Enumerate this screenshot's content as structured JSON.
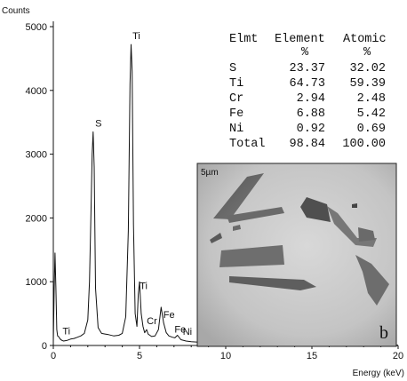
{
  "chart_data": {
    "type": "line",
    "ylabel": "Counts",
    "xlabel": "Energy (keV)",
    "xlim": [
      0,
      20
    ],
    "ylim": [
      0,
      5000
    ],
    "x_ticks": [
      "0",
      "5",
      "10",
      "15",
      "20"
    ],
    "y_ticks": [
      "0",
      "1000",
      "2000",
      "3000",
      "4000",
      "5000"
    ],
    "grid": false,
    "series": [
      {
        "x": [
          0.0,
          0.05,
          0.1,
          0.15,
          0.2,
          0.25,
          0.3,
          0.4,
          0.5,
          0.6,
          0.8,
          1.0,
          1.2,
          1.4,
          1.6,
          1.8,
          2.0,
          2.1,
          2.2,
          2.25,
          2.31,
          2.37,
          2.45,
          2.6,
          2.8,
          3.0,
          3.2,
          3.5,
          3.8,
          4.0,
          4.2,
          4.35,
          4.45,
          4.51,
          4.57,
          4.65,
          4.75,
          4.85,
          4.93,
          5.0,
          5.1,
          5.2,
          5.3,
          5.41,
          5.5,
          5.6,
          5.7,
          5.9,
          6.1,
          6.25,
          6.4,
          6.55,
          6.7,
          6.9,
          7.05,
          7.2,
          7.4,
          7.7,
          8.0,
          8.5,
          9.0,
          10.0,
          11.0,
          12.0,
          13.0,
          14.0,
          15.0,
          16.0,
          17.0,
          18.0,
          19.0,
          20.0
        ],
        "y": [
          50,
          900,
          1450,
          900,
          250,
          150,
          140,
          100,
          80,
          70,
          80,
          100,
          110,
          130,
          150,
          190,
          400,
          1000,
          2300,
          3000,
          3350,
          2800,
          900,
          280,
          190,
          180,
          170,
          150,
          160,
          190,
          450,
          1800,
          4100,
          4720,
          4300,
          1900,
          500,
          300,
          800,
          1000,
          500,
          300,
          200,
          250,
          180,
          160,
          140,
          150,
          250,
          600,
          350,
          200,
          150,
          130,
          120,
          160,
          90,
          70,
          60,
          50,
          40,
          30,
          25,
          20,
          18,
          15,
          12,
          10,
          10,
          8,
          8,
          5
        ]
      }
    ],
    "annotations": [
      {
        "text": "Ti",
        "x": 0.45
      },
      {
        "text": "S",
        "x": 2.31
      },
      {
        "text": "Ti",
        "x": 4.51
      },
      {
        "text": "Ti",
        "x": 4.93
      },
      {
        "text": "Cr",
        "x": 5.41
      },
      {
        "text": "Fe",
        "x": 6.4
      },
      {
        "text": "Fe",
        "x": 7.05
      },
      {
        "text": "Ni",
        "x": 7.47
      }
    ]
  },
  "composition_table": {
    "headers": [
      "Elmt",
      "Element",
      "Atomic"
    ],
    "units": [
      "",
      "%",
      "%"
    ],
    "rows": [
      [
        "S",
        "23.37",
        "32.02"
      ],
      [
        "Ti",
        "64.73",
        "59.39"
      ],
      [
        "Cr",
        "2.94",
        "2.48"
      ],
      [
        "Fe",
        "6.88",
        "5.42"
      ],
      [
        "Ni",
        "0.92",
        "0.69"
      ],
      [
        "Total",
        "98.84",
        "100.00"
      ]
    ]
  },
  "micrograph": {
    "scale_bar_label": "5µm",
    "panel_label": "b"
  }
}
